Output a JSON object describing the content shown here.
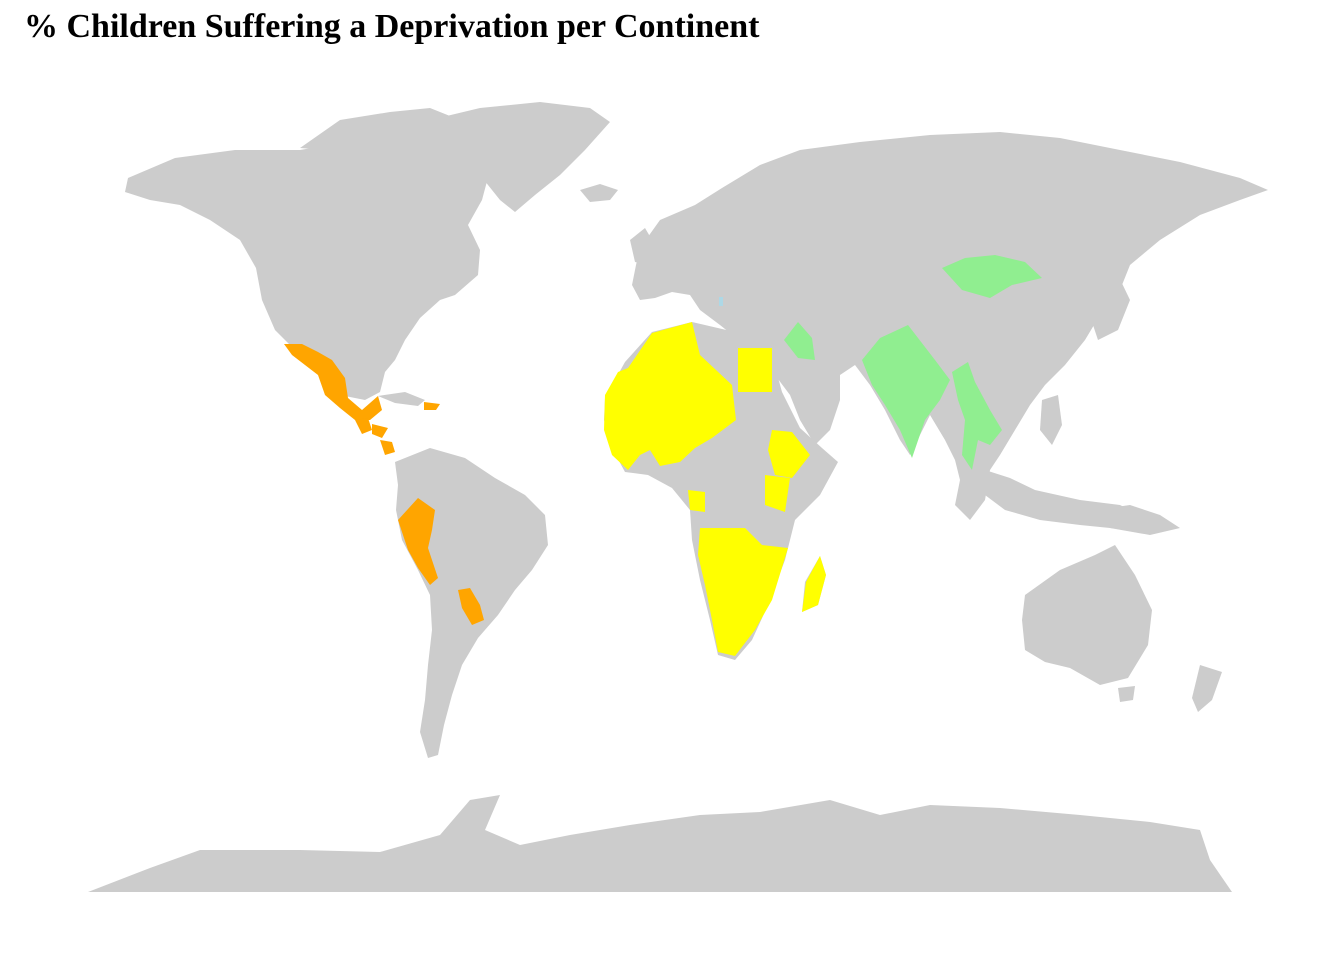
{
  "title": "% Children Suffering a Deprivation per Continent",
  "colors": {
    "background": "#ffffff",
    "land_default": "#cccccc",
    "americas": "#ffa500",
    "africa": "#ffff00",
    "asia": "#90ee90",
    "europe": "#add8e6"
  },
  "highlighted_regions": [
    {
      "name": "Mexico",
      "group": "americas"
    },
    {
      "name": "Guatemala",
      "group": "americas"
    },
    {
      "name": "Honduras",
      "group": "americas"
    },
    {
      "name": "Panama",
      "group": "americas"
    },
    {
      "name": "Dominican Republic",
      "group": "americas"
    },
    {
      "name": "Peru",
      "group": "americas"
    },
    {
      "name": "Paraguay",
      "group": "americas"
    },
    {
      "name": "West Africa",
      "group": "africa"
    },
    {
      "name": "Egypt",
      "group": "africa"
    },
    {
      "name": "Ethiopia",
      "group": "africa"
    },
    {
      "name": "Kenya",
      "group": "africa"
    },
    {
      "name": "Southern Africa",
      "group": "africa"
    },
    {
      "name": "Madagascar",
      "group": "africa"
    },
    {
      "name": "Iraq",
      "group": "asia"
    },
    {
      "name": "India",
      "group": "asia"
    },
    {
      "name": "Myanmar",
      "group": "asia"
    },
    {
      "name": "Thailand",
      "group": "asia"
    },
    {
      "name": "Mongolia",
      "group": "asia"
    },
    {
      "name": "Albania",
      "group": "europe"
    }
  ]
}
